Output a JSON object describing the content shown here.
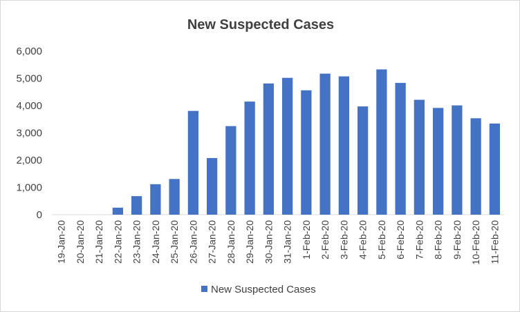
{
  "chart_data": {
    "type": "bar",
    "title": "New Suspected Cases",
    "xlabel": "",
    "ylabel": "",
    "ylim": [
      0,
      6000
    ],
    "yticks": [
      "0",
      "1,000",
      "2,000",
      "3,000",
      "4,000",
      "5,000",
      "6,000"
    ],
    "ytick_values": [
      0,
      1000,
      2000,
      3000,
      4000,
      5000,
      6000
    ],
    "grid": false,
    "legend_position": "bottom",
    "bar_color": "#4472c4",
    "categories": [
      "19-Jan-20",
      "20-Jan-20",
      "21-Jan-20",
      "22-Jan-20",
      "23-Jan-20",
      "24-Jan-20",
      "25-Jan-20",
      "26-Jan-20",
      "27-Jan-20",
      "28-Jan-20",
      "29-Jan-20",
      "30-Jan-20",
      "31-Jan-20",
      "1-Feb-20",
      "2-Feb-20",
      "3-Feb-20",
      "4-Feb-20",
      "5-Feb-20",
      "6-Feb-20",
      "7-Feb-20",
      "8-Feb-20",
      "9-Feb-20",
      "10-Feb-20",
      "11-Feb-20"
    ],
    "series": [
      {
        "name": "New Suspected Cases",
        "values": [
          0,
          0,
          0,
          257,
          680,
          1118,
          1309,
          3806,
          2077,
          3248,
          4148,
          4812,
          5019,
          4562,
          5173,
          5072,
          3971,
          5328,
          4833,
          4214,
          3916,
          4008,
          3536,
          3342
        ]
      }
    ]
  }
}
